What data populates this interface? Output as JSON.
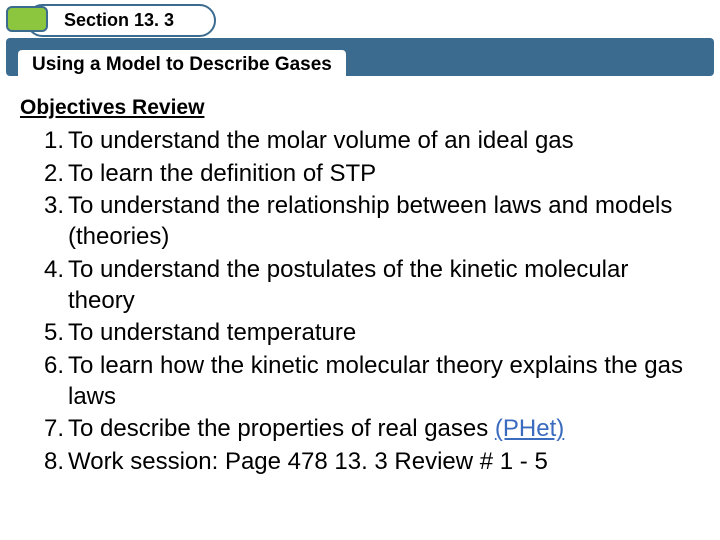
{
  "header": {
    "section_label": "Section 13. 3",
    "subtitle": "Using a Model to Describe Gases"
  },
  "colors": {
    "accent_green": "#8cc63f",
    "bar_blue": "#3b6b8f",
    "link_blue": "#3b6bbf",
    "background": "#ffffff",
    "text": "#000000"
  },
  "typography": {
    "section_label_fontsize": 18,
    "subtitle_fontsize": 19,
    "heading_fontsize": 21,
    "list_fontsize": 24,
    "font_family": "Arial"
  },
  "objectives": {
    "heading": "Objectives Review",
    "items": [
      {
        "text": "To understand the molar volume of an ideal gas"
      },
      {
        "text": "To learn the definition of STP"
      },
      {
        "text": "To understand the relationship between laws and models (theories)"
      },
      {
        "text": "To understand the postulates of the kinetic molecular theory"
      },
      {
        "text": "To understand temperature"
      },
      {
        "text": "To learn how the kinetic molecular theory explains the gas laws"
      },
      {
        "text_prefix": "To describe the properties of real gases ",
        "link_text": "(PHet)"
      },
      {
        "text": "Work session: Page 478 13. 3 Review # 1 - 5"
      }
    ]
  }
}
